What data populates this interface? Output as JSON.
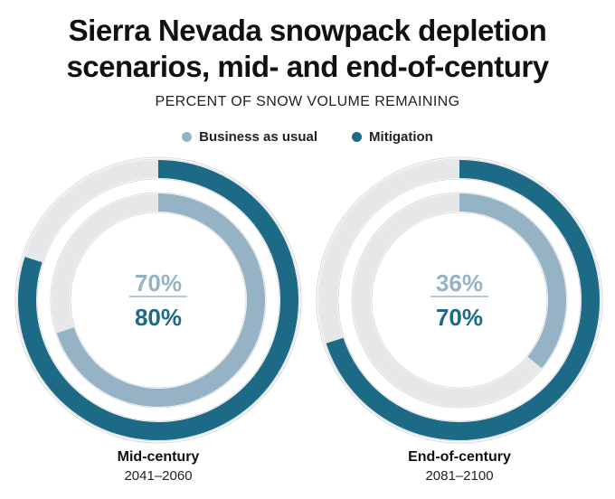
{
  "chart_data": {
    "type": "donut",
    "title_lines": [
      "Sierra Nevada snowpack depletion",
      "scenarios, mid- and end-of-century"
    ],
    "subtitle": "PERCENT OF SNOW VOLUME REMAINING",
    "unit": "%",
    "series": [
      {
        "name": "Business as usual",
        "ring": "inner",
        "color": "#95b3c5"
      },
      {
        "name": "Mitigation",
        "ring": "outer",
        "color": "#1d6a86"
      }
    ],
    "track_color": "#e6e7e9",
    "panels": [
      {
        "label": "Mid-century",
        "years": "2041–2060",
        "values": {
          "Business as usual": 70,
          "Mitigation": 80
        }
      },
      {
        "label": "End-of-century",
        "years": "2081–2100",
        "values": {
          "Business as usual": 36,
          "Mitigation": 70
        }
      }
    ]
  }
}
